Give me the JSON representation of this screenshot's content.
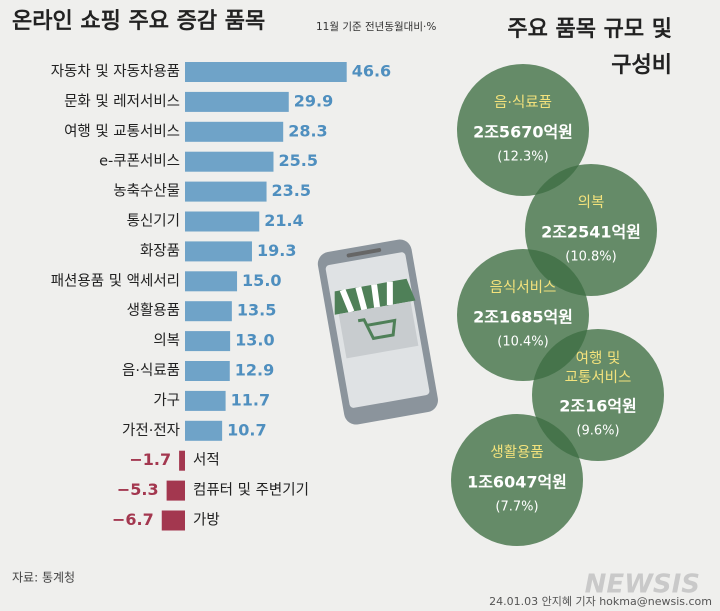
{
  "chart_data": {
    "type": "hbar",
    "title": "온라인 쇼핑 주요 증감 품목",
    "subtitle": "11월 기준 전년동월대비·%",
    "categories": [
      "자동차 및 자동차용품",
      "문화 및 레저서비스",
      "여행 및 교통서비스",
      "e-쿠폰서비스",
      "농축수산물",
      "통신기기",
      "화장품",
      "패션용품 및 액세서리",
      "생활용품",
      "의복",
      "음·식료품",
      "가구",
      "가전·전자",
      "서적",
      "컴퓨터 및 주변기기",
      "가방"
    ],
    "values": [
      46.6,
      29.9,
      28.3,
      25.5,
      23.5,
      21.4,
      19.3,
      15.0,
      13.5,
      13.0,
      12.9,
      11.7,
      10.7,
      -1.7,
      -5.3,
      -6.7
    ],
    "value_labels": [
      "46.6",
      "29.9",
      "28.3",
      "25.5",
      "23.5",
      "21.4",
      "19.3",
      "15.0",
      "13.5",
      "13.0",
      "12.9",
      "11.7",
      "10.7",
      "−1.7",
      "−5.3",
      "−6.7"
    ],
    "color": "#6fa3c8",
    "negative_color": "#a3374f",
    "composition": {
      "title": [
        "주요 품목 규모 및",
        "구성비"
      ],
      "items": [
        {
          "name": [
            "음·식료품"
          ],
          "amount": "2조5670억원",
          "share": "(12.3%)"
        },
        {
          "name": [
            "의복"
          ],
          "amount": "2조2541억원",
          "share": "(10.8%)"
        },
        {
          "name": [
            "음식서비스"
          ],
          "amount": "2조1685억원",
          "share": "(10.4%)"
        },
        {
          "name": [
            "여행 및",
            "교통서비스"
          ],
          "amount": "2조16억원",
          "share": "(9.6%)"
        },
        {
          "name": [
            "생활용품"
          ],
          "amount": "1조6047억원",
          "share": "(7.7%)"
        }
      ]
    },
    "source": "자료: 통계청",
    "credit": "24.01.03 안지혜 기자 hokma@newsis.com",
    "watermark": "NEWSIS"
  }
}
